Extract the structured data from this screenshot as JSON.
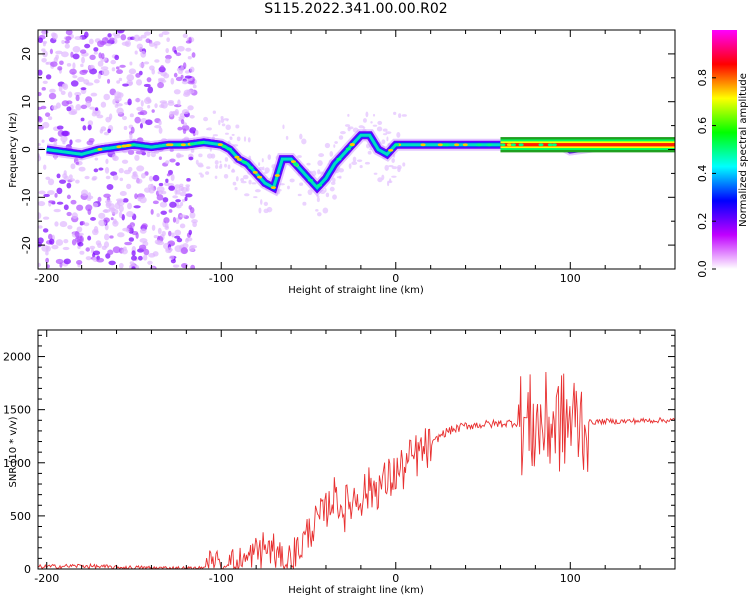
{
  "chart_data": [
    {
      "type": "heatmap",
      "title": "S115.2022.341.00.00.R02",
      "xlabel": "Height of straight line (km)",
      "ylabel": "Frequency (Hz)",
      "xlim": [
        -205,
        160
      ],
      "ylim": [
        -25,
        25
      ],
      "x_ticks": [
        -200,
        -100,
        0,
        100
      ],
      "y_ticks": [
        -20,
        -10,
        0,
        10,
        20
      ],
      "colorbar": {
        "label": "Normalized spectral amplitude",
        "range": [
          0,
          1
        ],
        "ticks": [
          0.0,
          0.2,
          0.4,
          0.6,
          0.8
        ],
        "colors": [
          "#ffffff",
          "#c000ff",
          "#0000ff",
          "#00ffff",
          "#00ff00",
          "#ffff00",
          "#ff0000",
          "#ff00ff"
        ]
      },
      "ridge_track": {
        "x": [
          -200,
          -190,
          -180,
          -170,
          -160,
          -150,
          -140,
          -130,
          -120,
          -110,
          -100,
          -95,
          -90,
          -85,
          -80,
          -75,
          -70,
          -65,
          -60,
          -55,
          -50,
          -45,
          -40,
          -35,
          -30,
          -25,
          -20,
          -15,
          -10,
          -5,
          0,
          10,
          20,
          40,
          60,
          80,
          90,
          95,
          100,
          120,
          140,
          160
        ],
        "y": [
          0,
          -0.5,
          -1,
          0,
          0.5,
          1,
          0.5,
          1,
          1,
          1.5,
          1,
          0,
          -2,
          -3,
          -5,
          -7,
          -8,
          -2,
          -2,
          -4,
          -6,
          -8,
          -6,
          -3,
          -1,
          1,
          3,
          3,
          0,
          -1,
          1,
          1,
          1,
          1,
          1,
          1,
          1,
          1,
          0,
          1,
          1,
          1
        ]
      },
      "grid": false
    },
    {
      "type": "line",
      "title": "",
      "xlabel": "Height of straight line (km)",
      "ylabel": "SNR (10 * v/v)",
      "xlim": [
        -205,
        160
      ],
      "ylim": [
        0,
        2250
      ],
      "x_ticks": [
        -200,
        -100,
        0,
        100
      ],
      "y_ticks": [
        0,
        500,
        1000,
        1500,
        2000
      ],
      "series": [
        {
          "color": "#e83030",
          "x": [
            -205,
            -180,
            -160,
            -140,
            -120,
            -110,
            -100,
            -90,
            -85,
            -80,
            -75,
            -70,
            -65,
            -60,
            -55,
            -50,
            -45,
            -40,
            -35,
            -30,
            -25,
            -20,
            -15,
            -10,
            -5,
            0,
            5,
            10,
            15,
            20,
            25,
            30,
            35,
            40,
            50,
            60,
            70,
            75,
            80,
            85,
            90,
            95,
            100,
            105,
            110,
            120,
            130,
            140,
            150,
            160
          ],
          "y": [
            20,
            30,
            15,
            10,
            5,
            5,
            10,
            40,
            80,
            150,
            200,
            180,
            30,
            100,
            200,
            350,
            450,
            550,
            700,
            550,
            650,
            700,
            750,
            780,
            820,
            900,
            950,
            1050,
            1100,
            1150,
            1250,
            1300,
            1320,
            1350,
            1360,
            1370,
            1380,
            1350,
            1350,
            1350,
            1380,
            1380,
            1380,
            1390,
            1380,
            1390,
            1390,
            1395,
            1400,
            1400
          ]
        }
      ],
      "grid": false
    }
  ]
}
